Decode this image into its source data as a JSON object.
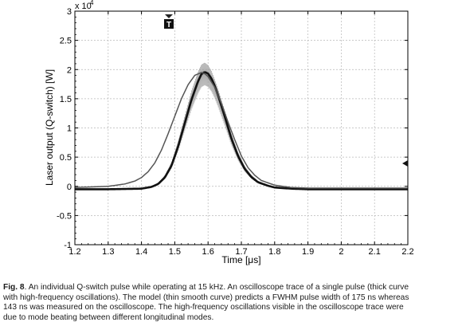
{
  "chart_data": {
    "type": "line",
    "xlabel": "Time [μs]",
    "ylabel": "Laser output (Q-switch) [W]",
    "y_multiplier_label": "x 10",
    "y_multiplier_exp": "4",
    "xlim": [
      1.2,
      2.2
    ],
    "ylim": [
      -1,
      3
    ],
    "x_ticks": [
      1.2,
      1.3,
      1.4,
      1.5,
      1.6,
      1.7,
      1.8,
      1.9,
      2.0,
      2.1,
      2.2
    ],
    "x_tick_labels": [
      "1.2",
      "1.3",
      "1.4",
      "1.5",
      "1.6",
      "1.7",
      "1.8",
      "1.9",
      "2",
      "2.1",
      "2.2"
    ],
    "y_ticks": [
      -1,
      -0.5,
      0,
      0.5,
      1,
      1.5,
      2,
      2.5,
      3
    ],
    "y_tick_labels": [
      "-1",
      "-0.5",
      "0",
      "0.5",
      "1",
      "1.5",
      "2",
      "2.5",
      "3"
    ],
    "grid": true,
    "trigger_marker": "T",
    "series": [
      {
        "role": "measured",
        "x": [
          1.2,
          1.3,
          1.4,
          1.43,
          1.45,
          1.47,
          1.49,
          1.51,
          1.53,
          1.55,
          1.57,
          1.58,
          1.59,
          1.6,
          1.61,
          1.62,
          1.63,
          1.65,
          1.67,
          1.69,
          1.71,
          1.73,
          1.75,
          1.78,
          1.8,
          1.85,
          1.9,
          2.0,
          2.1,
          2.2
        ],
        "y": [
          -0.05,
          -0.05,
          -0.04,
          -0.01,
          0.04,
          0.15,
          0.35,
          0.68,
          1.08,
          1.48,
          1.8,
          1.92,
          1.96,
          1.93,
          1.85,
          1.72,
          1.56,
          1.2,
          0.82,
          0.52,
          0.3,
          0.16,
          0.07,
          0.01,
          -0.02,
          -0.04,
          -0.05,
          -0.05,
          -0.05,
          -0.05
        ],
        "oscillation_amplitude": 0.22,
        "color": "#111111"
      },
      {
        "role": "model",
        "x": [
          1.2,
          1.3,
          1.35,
          1.38,
          1.4,
          1.42,
          1.44,
          1.46,
          1.48,
          1.5,
          1.52,
          1.54,
          1.56,
          1.58,
          1.59,
          1.6,
          1.62,
          1.64,
          1.66,
          1.68,
          1.7,
          1.72,
          1.74,
          1.76,
          1.8,
          1.85,
          1.9,
          2.0,
          2.2
        ],
        "y": [
          -0.02,
          0.0,
          0.04,
          0.09,
          0.15,
          0.25,
          0.4,
          0.62,
          0.9,
          1.2,
          1.5,
          1.74,
          1.9,
          1.95,
          1.93,
          1.88,
          1.7,
          1.42,
          1.1,
          0.8,
          0.52,
          0.32,
          0.19,
          0.1,
          0.02,
          -0.02,
          -0.03,
          -0.03,
          -0.03
        ],
        "color": "#555555"
      }
    ]
  },
  "caption": {
    "fig_label": "Fig. 8",
    "lines": [
      ". An individual Q-switch pulse while operating at 15 kHz. An oscilloscope trace of a single pulse (thick curve",
      "with high-frequency oscillations). The model (thin smooth curve) predicts a FWHM pulse width of 175 ns whereas",
      "143 ns was measured on the oscilloscope. The high-frequency oscillations visible in the oscilloscope trace were",
      "due to mode beating between different longitudinal modes."
    ]
  },
  "colors": {
    "grid": "#b8b8b8",
    "axis": "#000000",
    "envelope": "#9a9a9a"
  }
}
